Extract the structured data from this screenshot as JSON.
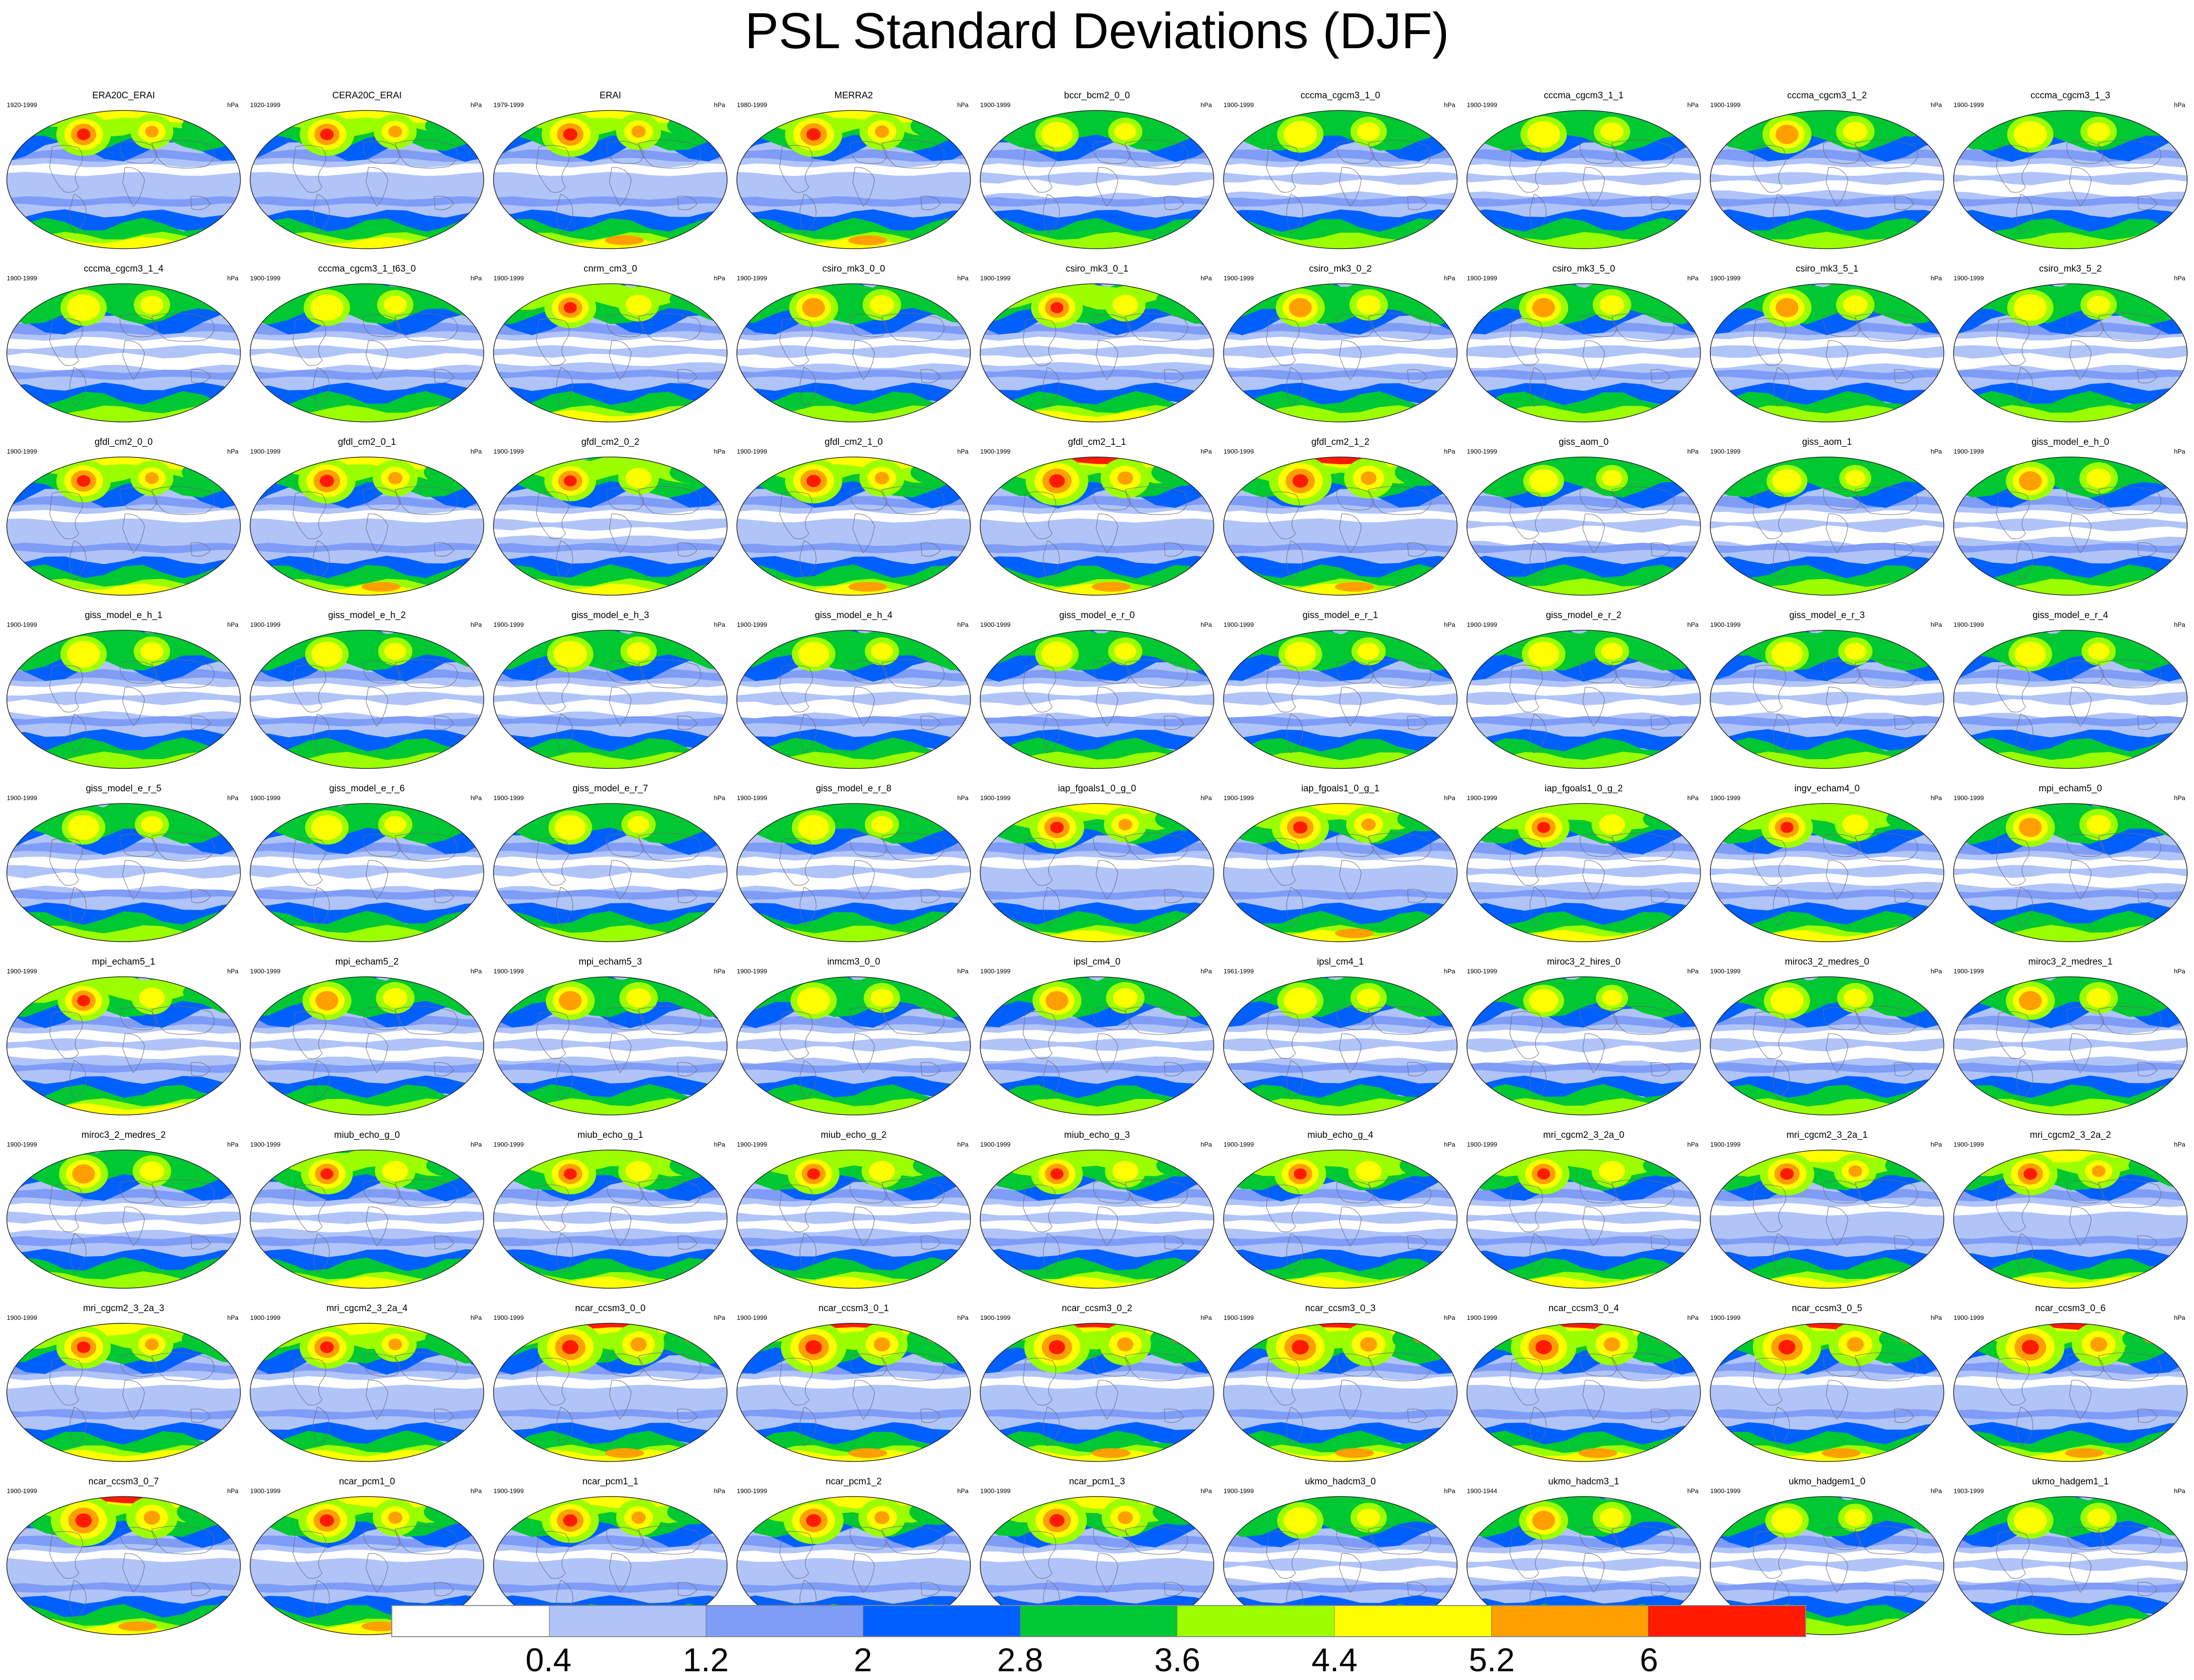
{
  "title": "PSL Standard Deviations (DJF)",
  "chart_data": {
    "type": "heatmap",
    "title": "PSL Standard Deviations (DJF)",
    "projection": "robinson-like global map",
    "unit": "hPa",
    "colorbar": {
      "levels": [
        "0.4",
        "1.2",
        "2",
        "2.8",
        "3.6",
        "4.4",
        "5.2",
        "6"
      ],
      "colors": [
        "#ffffff",
        "#b0c4f8",
        "#7f9cf6",
        "#0060ff",
        "#00c832",
        "#9cff00",
        "#ffff00",
        "#ffa000",
        "#ff1a00"
      ]
    },
    "panels": [
      {
        "name": "ERA20C_ERAI",
        "years": "1920-1999",
        "intensity": 1.0
      },
      {
        "name": "CERA20C_ERAI",
        "years": "1920-1999",
        "intensity": 1.0
      },
      {
        "name": "ERAI",
        "years": "1979-1999",
        "intensity": 1.05
      },
      {
        "name": "MERRA2",
        "years": "1980-1999",
        "intensity": 1.05
      },
      {
        "name": "bccr_bcm2_0_0",
        "years": "1900-1999",
        "intensity": 0.8
      },
      {
        "name": "cccma_cgcm3_1_0",
        "years": "1900-1999",
        "intensity": 0.85
      },
      {
        "name": "cccma_cgcm3_1_1",
        "years": "1900-1999",
        "intensity": 0.85
      },
      {
        "name": "cccma_cgcm3_1_2",
        "years": "1900-1999",
        "intensity": 0.9
      },
      {
        "name": "cccma_cgcm3_1_3",
        "years": "1900-1999",
        "intensity": 0.85
      },
      {
        "name": "cccma_cgcm3_1_4",
        "years": "1900-1999",
        "intensity": 0.85
      },
      {
        "name": "cccma_cgcm3_1_t63_0",
        "years": "1900-1999",
        "intensity": 0.85
      },
      {
        "name": "cnrm_cm3_0",
        "years": "1900-1999",
        "intensity": 0.95
      },
      {
        "name": "csiro_mk3_0_0",
        "years": "1900-1999",
        "intensity": 0.9
      },
      {
        "name": "csiro_mk3_0_1",
        "years": "1900-1999",
        "intensity": 0.95
      },
      {
        "name": "csiro_mk3_0_2",
        "years": "1900-1999",
        "intensity": 0.9
      },
      {
        "name": "csiro_mk3_5_0",
        "years": "1900-1999",
        "intensity": 0.9
      },
      {
        "name": "csiro_mk3_5_1",
        "years": "1900-1999",
        "intensity": 0.9
      },
      {
        "name": "csiro_mk3_5_2",
        "years": "1900-1999",
        "intensity": 0.85
      },
      {
        "name": "gfdl_cm2_0_0",
        "years": "1900-1999",
        "intensity": 1.0
      },
      {
        "name": "gfdl_cm2_0_1",
        "years": "1900-1999",
        "intensity": 1.05
      },
      {
        "name": "gfdl_cm2_0_2",
        "years": "1900-1999",
        "intensity": 0.95
      },
      {
        "name": "gfdl_cm2_1_0",
        "years": "1900-1999",
        "intensity": 1.05
      },
      {
        "name": "gfdl_cm2_1_1",
        "years": "1900-1999",
        "intensity": 1.15
      },
      {
        "name": "gfdl_cm2_1_2",
        "years": "1900-1999",
        "intensity": 1.15
      },
      {
        "name": "giss_aom_0",
        "years": "1900-1999",
        "intensity": 0.75
      },
      {
        "name": "giss_aom_1",
        "years": "1900-1999",
        "intensity": 0.75
      },
      {
        "name": "giss_model_e_h_0",
        "years": "1900-1999",
        "intensity": 0.9
      },
      {
        "name": "giss_model_e_h_1",
        "years": "1900-1999",
        "intensity": 0.85
      },
      {
        "name": "giss_model_e_h_2",
        "years": "1900-1999",
        "intensity": 0.8
      },
      {
        "name": "giss_model_e_h_3",
        "years": "1900-1999",
        "intensity": 0.85
      },
      {
        "name": "giss_model_e_h_4",
        "years": "1900-1999",
        "intensity": 0.8
      },
      {
        "name": "giss_model_e_r_0",
        "years": "1900-1999",
        "intensity": 0.8
      },
      {
        "name": "giss_model_e_r_1",
        "years": "1900-1999",
        "intensity": 0.8
      },
      {
        "name": "giss_model_e_r_2",
        "years": "1900-1999",
        "intensity": 0.8
      },
      {
        "name": "giss_model_e_r_3",
        "years": "1900-1999",
        "intensity": 0.8
      },
      {
        "name": "giss_model_e_r_4",
        "years": "1900-1999",
        "intensity": 0.8
      },
      {
        "name": "giss_model_e_r_5",
        "years": "1900-1999",
        "intensity": 0.8
      },
      {
        "name": "giss_model_e_r_6",
        "years": "1900-1999",
        "intensity": 0.8
      },
      {
        "name": "giss_model_e_r_7",
        "years": "1900-1999",
        "intensity": 0.8
      },
      {
        "name": "giss_model_e_r_8",
        "years": "1900-1999",
        "intensity": 0.8
      },
      {
        "name": "iap_fgoals1_0_g_0",
        "years": "1900-1999",
        "intensity": 1.0
      },
      {
        "name": "iap_fgoals1_0_g_1",
        "years": "1900-1999",
        "intensity": 1.05
      },
      {
        "name": "iap_fgoals1_0_g_2",
        "years": "1900-1999",
        "intensity": 0.95
      },
      {
        "name": "ingv_echam4_0",
        "years": "1900-1999",
        "intensity": 0.95
      },
      {
        "name": "mpi_echam5_0",
        "years": "1900-1999",
        "intensity": 0.9
      },
      {
        "name": "mpi_echam5_1",
        "years": "1900-1999",
        "intensity": 0.95
      },
      {
        "name": "mpi_echam5_2",
        "years": "1900-1999",
        "intensity": 0.9
      },
      {
        "name": "mpi_echam5_3",
        "years": "1900-1999",
        "intensity": 0.9
      },
      {
        "name": "inmcm3_0_0",
        "years": "1900-1999",
        "intensity": 0.85
      },
      {
        "name": "ipsl_cm4_0",
        "years": "1900-1999",
        "intensity": 0.9
      },
      {
        "name": "ipsl_cm4_1",
        "years": "1961-1999",
        "intensity": 0.85
      },
      {
        "name": "miroc3_2_hires_0",
        "years": "1900-1999",
        "intensity": 0.75
      },
      {
        "name": "miroc3_2_medres_0",
        "years": "1900-1999",
        "intensity": 0.85
      },
      {
        "name": "miroc3_2_medres_1",
        "years": "1900-1999",
        "intensity": 0.9
      },
      {
        "name": "miroc3_2_medres_2",
        "years": "1900-1999",
        "intensity": 0.9
      },
      {
        "name": "miub_echo_g_0",
        "years": "1900-1999",
        "intensity": 0.95
      },
      {
        "name": "miub_echo_g_1",
        "years": "1900-1999",
        "intensity": 0.95
      },
      {
        "name": "miub_echo_g_2",
        "years": "1900-1999",
        "intensity": 0.95
      },
      {
        "name": "miub_echo_g_3",
        "years": "1900-1999",
        "intensity": 0.95
      },
      {
        "name": "miub_echo_g_4",
        "years": "1900-1999",
        "intensity": 0.95
      },
      {
        "name": "mri_cgcm2_3_2a_0",
        "years": "1900-1999",
        "intensity": 0.95
      },
      {
        "name": "mri_cgcm2_3_2a_1",
        "years": "1900-1999",
        "intensity": 1.0
      },
      {
        "name": "mri_cgcm2_3_2a_2",
        "years": "1900-1999",
        "intensity": 1.0
      },
      {
        "name": "mri_cgcm2_3_2a_3",
        "years": "1900-1999",
        "intensity": 1.0
      },
      {
        "name": "mri_cgcm2_3_2a_4",
        "years": "1900-1999",
        "intensity": 1.0
      },
      {
        "name": "ncar_ccsm3_0_0",
        "years": "1900-1999",
        "intensity": 1.2
      },
      {
        "name": "ncar_ccsm3_0_1",
        "years": "1900-1999",
        "intensity": 1.2
      },
      {
        "name": "ncar_ccsm3_0_2",
        "years": "1900-1999",
        "intensity": 1.2
      },
      {
        "name": "ncar_ccsm3_0_3",
        "years": "1900-1999",
        "intensity": 1.25
      },
      {
        "name": "ncar_ccsm3_0_4",
        "years": "1900-1999",
        "intensity": 1.2
      },
      {
        "name": "ncar_ccsm3_0_5",
        "years": "1900-1999",
        "intensity": 1.25
      },
      {
        "name": "ncar_ccsm3_0_6",
        "years": "1900-1999",
        "intensity": 1.25
      },
      {
        "name": "ncar_ccsm3_0_7",
        "years": "1900-1999",
        "intensity": 1.2
      },
      {
        "name": "ncar_pcm1_0",
        "years": "1900-1999",
        "intensity": 1.05
      },
      {
        "name": "ncar_pcm1_1",
        "years": "1900-1999",
        "intensity": 1.05
      },
      {
        "name": "ncar_pcm1_2",
        "years": "1900-1999",
        "intensity": 1.1
      },
      {
        "name": "ncar_pcm1_3",
        "years": "1900-1999",
        "intensity": 1.1
      },
      {
        "name": "ukmo_hadcm3_0",
        "years": "1900-1999",
        "intensity": 0.85
      },
      {
        "name": "ukmo_hadcm3_1",
        "years": "1900-1944",
        "intensity": 0.9
      },
      {
        "name": "ukmo_hadgem1_0",
        "years": "1900-1999",
        "intensity": 0.8
      },
      {
        "name": "ukmo_hadgem1_1",
        "years": "1903-1999",
        "intensity": 0.85
      }
    ]
  }
}
